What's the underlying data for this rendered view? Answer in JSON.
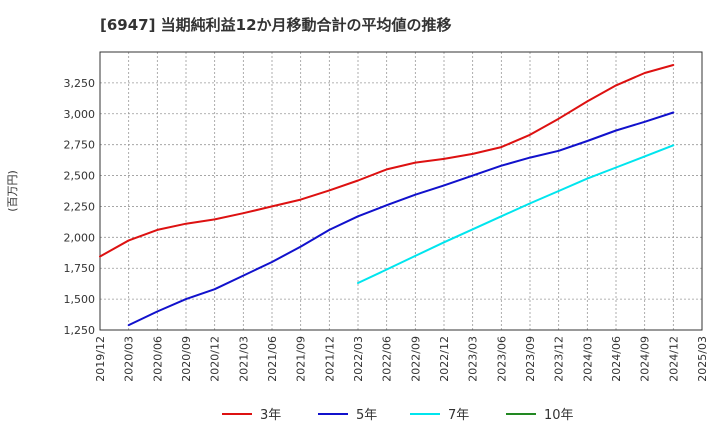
{
  "chart_data": {
    "type": "line",
    "title": "[6947]  当期純利益12か月移動合計の平均値の推移",
    "ylabel": "(百万円)",
    "xlabel": "",
    "ylim": [
      1250,
      3500
    ],
    "yticks": [
      1250,
      1500,
      1750,
      2000,
      2250,
      2500,
      2750,
      3000,
      3250
    ],
    "ytick_labels": [
      "1,250",
      "1,500",
      "1,750",
      "2,000",
      "2,250",
      "2,500",
      "2,750",
      "3,000",
      "3,250"
    ],
    "x_tick_labels": [
      "2019/12",
      "2020/03",
      "2020/06",
      "2020/09",
      "2020/12",
      "2021/03",
      "2021/06",
      "2021/09",
      "2021/12",
      "2022/03",
      "2022/06",
      "2022/09",
      "2022/12",
      "2023/03",
      "2023/06",
      "2023/09",
      "2023/12",
      "2024/03",
      "2024/06",
      "2024/09",
      "2024/12",
      "2025/03"
    ],
    "grid": true,
    "legend_position": "bottom",
    "series": [
      {
        "name": "3年",
        "color": "#dd1111",
        "x": [
          "2019/12",
          "2020/03",
          "2020/06",
          "2020/09",
          "2020/12",
          "2021/03",
          "2021/06",
          "2021/09",
          "2021/12",
          "2022/03",
          "2022/06",
          "2022/09",
          "2022/12",
          "2023/03",
          "2023/06",
          "2023/09",
          "2023/12",
          "2024/03",
          "2024/06",
          "2024/09",
          "2024/12"
        ],
        "values": [
          1845,
          1975,
          2060,
          2110,
          2145,
          2195,
          2250,
          2305,
          2380,
          2460,
          2550,
          2605,
          2635,
          2675,
          2730,
          2830,
          2960,
          3100,
          3230,
          3330,
          3395
        ]
      },
      {
        "name": "5年",
        "color": "#1111cc",
        "x": [
          "2020/03",
          "2020/06",
          "2020/09",
          "2020/12",
          "2021/03",
          "2021/06",
          "2021/09",
          "2021/12",
          "2022/03",
          "2022/06",
          "2022/09",
          "2022/12",
          "2023/03",
          "2023/06",
          "2023/09",
          "2023/12",
          "2024/03",
          "2024/06",
          "2024/09",
          "2024/12"
        ],
        "values": [
          1290,
          1400,
          1500,
          1580,
          1690,
          1800,
          1925,
          2060,
          2170,
          2260,
          2345,
          2420,
          2500,
          2580,
          2645,
          2700,
          2780,
          2865,
          2935,
          3010
        ]
      },
      {
        "name": "7年",
        "color": "#00e5ee",
        "x": [
          "2022/03",
          "2022/06",
          "2022/09",
          "2022/12",
          "2023/03",
          "2023/06",
          "2023/09",
          "2023/12",
          "2024/03",
          "2024/06",
          "2024/09",
          "2024/12"
        ],
        "values": [
          1630,
          1740,
          1850,
          1960,
          2065,
          2170,
          2275,
          2375,
          2475,
          2565,
          2655,
          2745
        ]
      },
      {
        "name": "10年",
        "color": "#228822",
        "x": [],
        "values": []
      }
    ]
  }
}
